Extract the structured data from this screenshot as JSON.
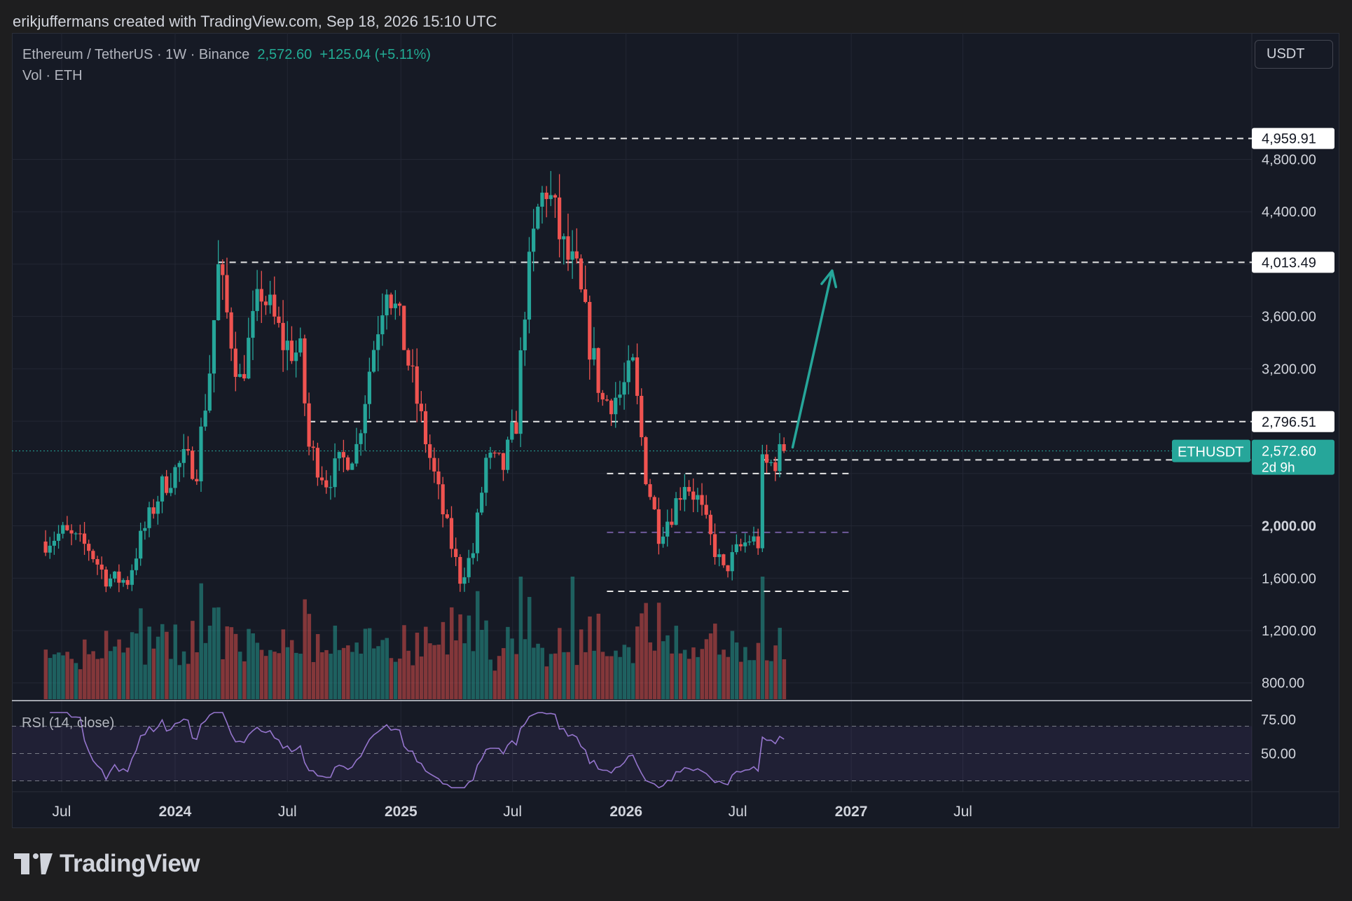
{
  "attribution": "erikjuffermans created with TradingView.com, Sep 18, 2026 15:10 UTC",
  "legend": {
    "symbol": "Ethereum / TetherUS · 1W · Binance",
    "price": "2,572.60",
    "change": "+125.04 (+5.11%)",
    "volume_label": "Vol · ETH"
  },
  "currency_button": "USDT",
  "rsi_label": "RSI (14, close)",
  "logo_text": "TradingView",
  "colors": {
    "up": "#26a69a",
    "down": "#ef5350",
    "arrow": "#26a69a",
    "rsi_line": "#9575cd",
    "price_tag_bg": "#26a69a"
  },
  "chart_data": {
    "type": "candlestick",
    "title": "Ethereum / TetherUS · 1W · Binance",
    "x_axis_labels": [
      "Jul",
      "2024",
      "Jul",
      "2025",
      "Jul",
      "2026",
      "Jul",
      "2027",
      "Jul"
    ],
    "y_axis_labels": [
      "4,800.00",
      "4,400.00",
      "3,600.00",
      "3,200.00",
      "2,000.00",
      "1,600.00",
      "1,200.00",
      "800.00"
    ],
    "y_range": [
      400,
      5100
    ],
    "current_price": {
      "symbol": "ETHUSDT",
      "value": "2,572.60",
      "countdown": "2d 9h"
    },
    "levels": [
      {
        "value": 4959.91,
        "label": "4,959.91",
        "x_start": "2025-08-18"
      },
      {
        "value": 4013.49,
        "label": "4,013.49",
        "x_start": "2024-03-11"
      },
      {
        "value": 2796.51,
        "label": "2,796.51",
        "x_start": "2024-08-05"
      },
      {
        "value": 2504.43,
        "label": "2,504.43",
        "x_start": "2026-08-10"
      }
    ],
    "support_lines": [
      {
        "value": 2400,
        "x_start": "2026-01-01",
        "x_end": "2026-12-31",
        "style": "white-dashed"
      },
      {
        "value": 1950,
        "x_start": "2026-01-01",
        "x_end": "2026-12-31",
        "style": "purple-dashed"
      },
      {
        "value": 1500,
        "x_start": "2026-01-01",
        "x_end": "2026-12-31",
        "style": "white-dashed"
      }
    ],
    "arrow": {
      "from": [
        "2026-09-28",
        2600
      ],
      "to": [
        "2026-12-01",
        3950
      ]
    },
    "rsi": {
      "levels": [
        "75.00",
        "50.00"
      ],
      "upper": 70,
      "middle": 50,
      "lower": 30
    }
  }
}
